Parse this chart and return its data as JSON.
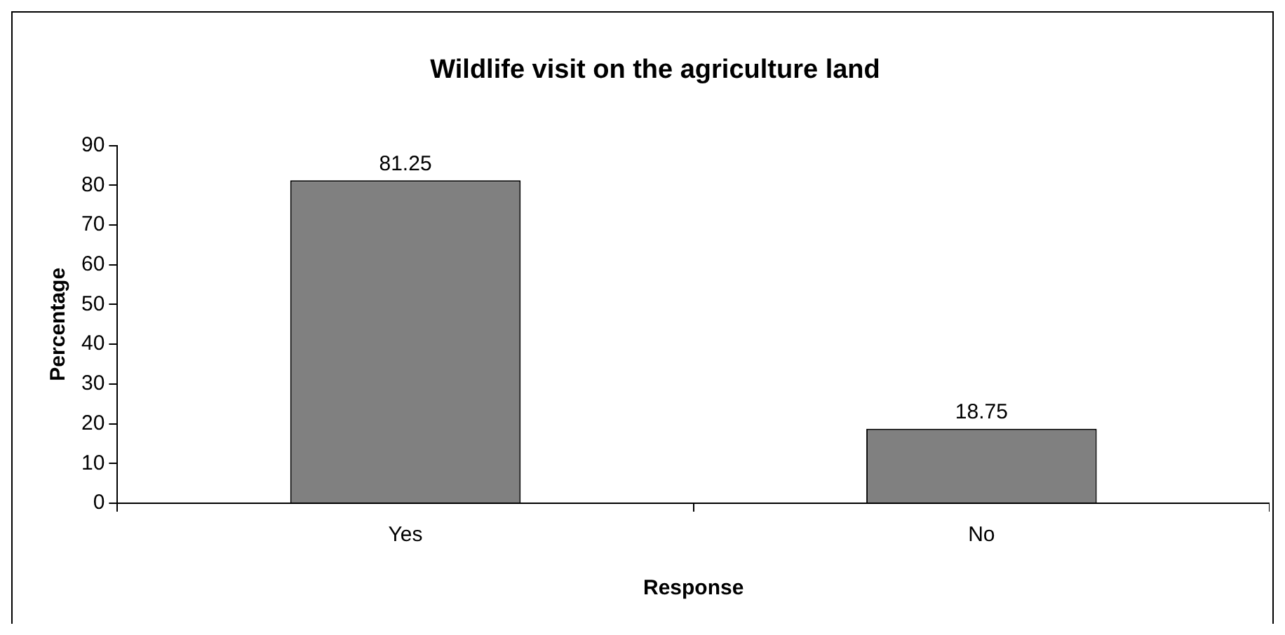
{
  "chart_data": {
    "type": "bar",
    "title": "Wildlife visit on the agriculture land",
    "xlabel": "Response",
    "ylabel": "Percentage",
    "categories": [
      "Yes",
      "No"
    ],
    "values": [
      81.25,
      18.75
    ],
    "color": "#808080",
    "ylim": [
      0,
      90
    ],
    "yticks": [
      0,
      10,
      20,
      30,
      40,
      50,
      60,
      70,
      80,
      90
    ],
    "grid": false,
    "legend": false,
    "data_labels": true
  }
}
